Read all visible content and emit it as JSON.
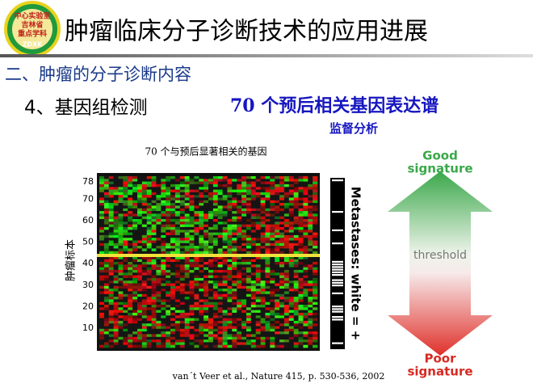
{
  "logo": {
    "lines": [
      "中心实验室",
      "吉林省",
      "重点学科",
      "ZDXK"
    ]
  },
  "header": {
    "title": "肿瘤临床分子诊断技术的应用进展"
  },
  "section": "二、肿瘤的分子诊断内容",
  "subheading": "4、基因组检测",
  "topic": {
    "title": "70 个预后相关基因表达谱",
    "subtitle": "监督分析"
  },
  "figure": {
    "caption": "70 个与预后显著相关的基因",
    "y_label": "肿瘤标本",
    "y_ticks": [
      78,
      70,
      60,
      50,
      40,
      30,
      20,
      10
    ],
    "metastases_label": "Metastases: white = +",
    "good_label": [
      "Good",
      "signature"
    ],
    "threshold_label": "threshold",
    "poor_label": [
      "Poor",
      "signature"
    ]
  },
  "citation": "van´t Veer et al., Nature 415, p. 530-536, 2002"
}
